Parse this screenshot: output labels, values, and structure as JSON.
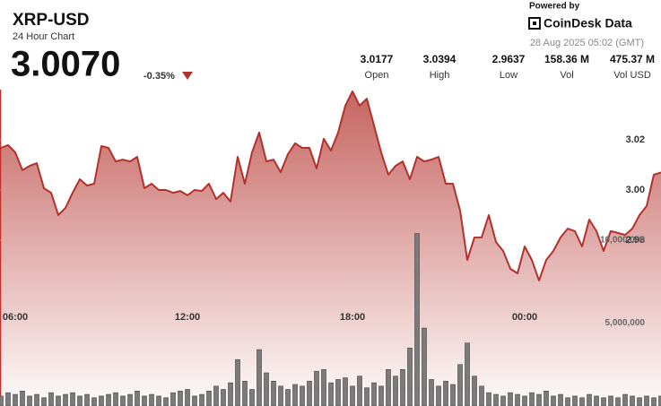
{
  "header": {
    "price": "3.0070",
    "change": "-0.35%",
    "stats": [
      {
        "value": "3.0177",
        "label": "Open"
      },
      {
        "value": "3.0394",
        "label": "High"
      },
      {
        "value": "2.9637",
        "label": "Low"
      },
      {
        "value": "158.36 M",
        "label": "Vol"
      },
      {
        "value": "475.37 M",
        "label": "Vol USD"
      }
    ],
    "powered_by": "Powered by",
    "brand": "CoinDesk Data",
    "timestamp": "28 Aug 2025 05:02 (GMT)"
  },
  "chart_data": {
    "type": "line",
    "title": "XRP-USD",
    "subtitle": "24 Hour Chart",
    "color": "#b3312b",
    "categories": [
      null,
      null,
      "06:00",
      null,
      null,
      null,
      null,
      null,
      null,
      null,
      null,
      null,
      null,
      null,
      null,
      null,
      null,
      null,
      null,
      null,
      null,
      null,
      null,
      null,
      null,
      null,
      "12:00",
      null,
      null,
      null,
      null,
      null,
      null,
      null,
      null,
      null,
      null,
      null,
      null,
      null,
      null,
      null,
      null,
      null,
      null,
      null,
      null,
      null,
      null,
      "18:00",
      null,
      null,
      null,
      null,
      null,
      null,
      null,
      null,
      null,
      null,
      null,
      null,
      null,
      null,
      null,
      null,
      null,
      null,
      null,
      null,
      null,
      null,
      null,
      "00:00",
      null,
      null,
      null,
      null,
      null,
      null,
      null,
      null,
      null,
      null,
      null,
      null,
      null,
      null,
      null,
      null,
      null,
      null,
      null
    ],
    "values": [
      3.0168,
      3.0179,
      3.015,
      3.0079,
      3.0096,
      3.0107,
      3.0007,
      2.9989,
      2.99,
      2.9929,
      2.9989,
      3.0043,
      3.0018,
      3.0025,
      3.0175,
      3.0168,
      3.0114,
      3.0121,
      3.0114,
      3.0132,
      3.0007,
      3.0025,
      3.0,
      3.0,
      2.9989,
      2.9996,
      2.9979,
      3.0,
      2.9996,
      3.0025,
      2.9964,
      2.9989,
      2.9954,
      3.0132,
      3.0025,
      3.015,
      3.0229,
      3.0114,
      3.0121,
      3.0071,
      3.0143,
      3.0186,
      3.0168,
      3.0168,
      3.0086,
      3.0204,
      3.0157,
      3.0229,
      3.0336,
      3.0393,
      3.0336,
      3.0364,
      3.0257,
      3.015,
      3.0061,
      3.0096,
      3.0114,
      3.0043,
      3.0132,
      3.0114,
      3.0121,
      3.0132,
      3.0025,
      3.0025,
      2.9918,
      2.9721,
      2.9811,
      2.9811,
      2.99,
      2.9793,
      2.9757,
      2.9686,
      2.9668,
      2.9775,
      2.9721,
      2.9639,
      2.9721,
      2.9757,
      2.9811,
      2.9846,
      2.9836,
      2.9775,
      2.9882,
      2.9836,
      2.9757,
      2.9836,
      2.9829,
      2.9821,
      2.9846,
      2.99,
      2.9936,
      3.0061,
      3.007
    ],
    "ylim": [
      2.92,
      3.04
    ],
    "yticks": [
      3.02,
      {
        "value": 3,
        "label": "3.00"
      },
      2.98
    ],
    "grid": true,
    "volume": {
      "color": "#7a7a7a",
      "values": [
        600000,
        800000,
        700000,
        900000,
        600000,
        700000,
        500000,
        800000,
        600000,
        700000,
        800000,
        600000,
        700000,
        500000,
        600000,
        700000,
        800000,
        600000,
        700000,
        900000,
        600000,
        700000,
        600000,
        500000,
        800000,
        900000,
        1000000,
        600000,
        700000,
        900000,
        1200000,
        1000000,
        1400000,
        2800000,
        1500000,
        1000000,
        3400000,
        2000000,
        1500000,
        1200000,
        1000000,
        1300000,
        1200000,
        1500000,
        2100000,
        2200000,
        1400000,
        1600000,
        1700000,
        1200000,
        1800000,
        1100000,
        1400000,
        1200000,
        2200000,
        1800000,
        2200000,
        3500000,
        10400000,
        4700000,
        1600000,
        1200000,
        1500000,
        1300000,
        2500000,
        3800000,
        1800000,
        1200000,
        800000,
        700000,
        600000,
        800000,
        700000,
        600000,
        800000,
        700000,
        900000,
        600000,
        700000,
        500000,
        600000,
        500000,
        700000,
        600000,
        500000,
        600000,
        500000,
        700000,
        600000,
        500000,
        600000,
        500000,
        600000
      ],
      "ylim": [
        0,
        20000000
      ],
      "yticks": [
        {
          "value": 10000000,
          "label": "10,000,000"
        },
        {
          "value": 5000000,
          "label": "5,000,000"
        }
      ]
    }
  }
}
